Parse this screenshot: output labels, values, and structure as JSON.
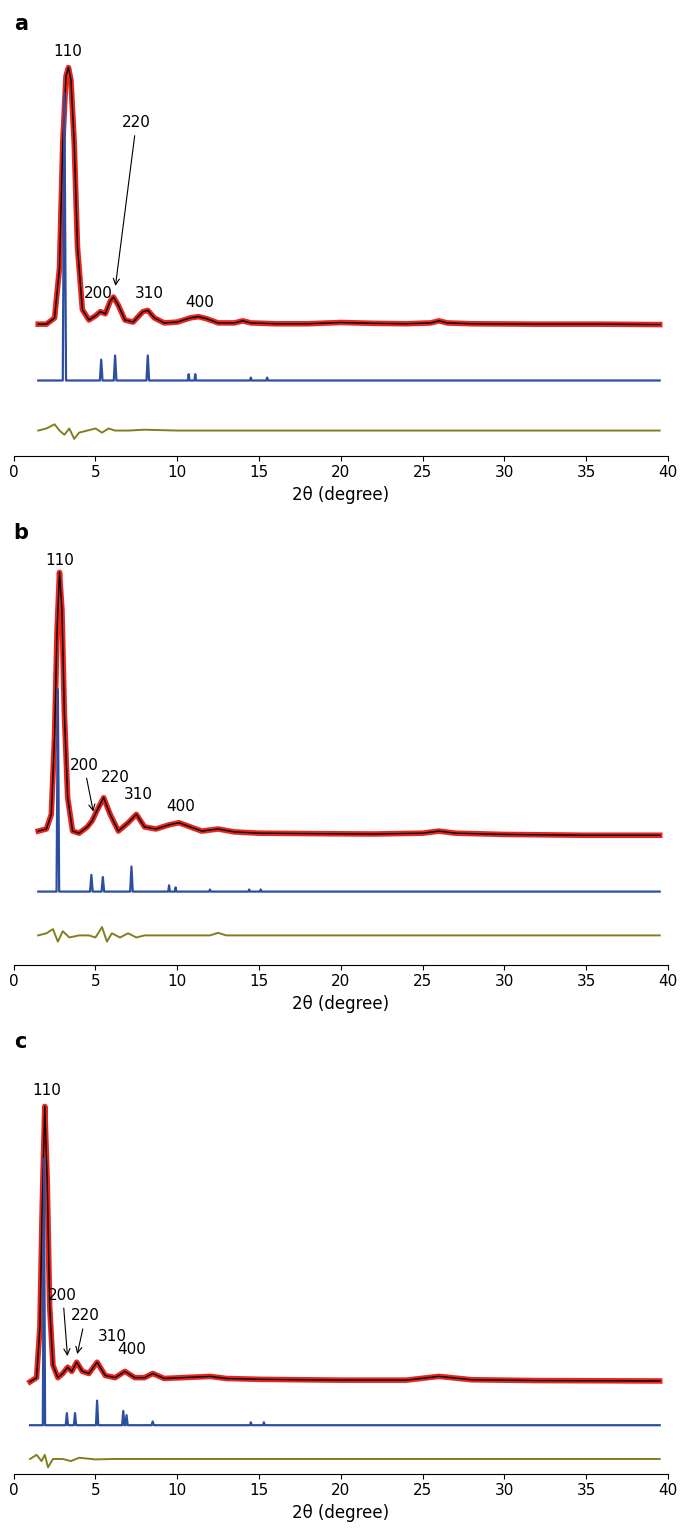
{
  "chart_data": [
    {
      "type": "line",
      "title": "a",
      "x_label": "2θ (degree)",
      "xlim": [
        0,
        40
      ],
      "xticks": [
        0,
        5,
        10,
        15,
        20,
        25,
        30,
        35,
        40
      ],
      "ylim": [
        0,
        100
      ],
      "tick_labels": "x",
      "series": [
        {
          "color": "#e8251f",
          "x": [
            1.5,
            2.0,
            2.5,
            2.8,
            3.0,
            3.2,
            3.35,
            3.5,
            3.7,
            3.9,
            4.2,
            4.6,
            5.0,
            5.3,
            5.6,
            5.9,
            6.1,
            6.4,
            6.8,
            7.3,
            7.9,
            8.2,
            8.6,
            9.2,
            10.0,
            10.8,
            11.3,
            11.8,
            12.5,
            13.5,
            14.0,
            14.5,
            16.0,
            18.0,
            20.0,
            22.0,
            24.0,
            25.5,
            26.0,
            26.5,
            28.0,
            32.0,
            36.0,
            39.5
          ],
          "values": [
            31.5,
            31.5,
            33,
            45,
            75,
            91,
            93,
            90,
            75,
            50,
            35,
            32.5,
            33.5,
            34.5,
            34,
            37,
            38,
            36,
            32.5,
            32,
            34.5,
            34.8,
            33,
            31.8,
            32,
            33,
            33.3,
            32.8,
            31.8,
            31.8,
            32.3,
            31.8,
            31.6,
            31.6,
            31.9,
            31.7,
            31.6,
            31.8,
            32.3,
            31.8,
            31.6,
            31.5,
            31.5,
            31.4
          ]
        },
        {
          "color": "#000000",
          "x": [
            1.5,
            2.0,
            2.5,
            2.8,
            3.0,
            3.2,
            3.35,
            3.5,
            3.7,
            3.9,
            4.2,
            4.6,
            5.0,
            5.3,
            5.6,
            5.9,
            6.1,
            6.4,
            6.8,
            7.3,
            7.9,
            8.2,
            8.6,
            9.2,
            10.0,
            10.8,
            11.3,
            11.8,
            12.5,
            13.5,
            14.0,
            14.5,
            16.0,
            18.0,
            20.0,
            22.0,
            24.0,
            25.5,
            26.0,
            26.5,
            28.0,
            32.0,
            36.0,
            39.5
          ],
          "values": [
            31.5,
            31.5,
            33,
            45,
            75,
            91,
            93,
            90,
            75,
            50,
            35,
            32.5,
            33.5,
            34.5,
            34,
            37,
            38,
            36,
            32.5,
            32,
            34.5,
            34.8,
            33,
            31.8,
            32,
            33,
            33.3,
            32.8,
            31.8,
            31.8,
            32.3,
            31.8,
            31.6,
            31.6,
            31.9,
            31.7,
            31.6,
            31.8,
            32.3,
            31.8,
            31.6,
            31.5,
            31.5,
            31.4
          ]
        },
        {
          "color": "#2c4ea0",
          "x": [
            1.5,
            3.0,
            3.1,
            3.2,
            5.27,
            5.35,
            5.43,
            6.12,
            6.2,
            6.28,
            8.12,
            8.2,
            8.28,
            10.65,
            10.7,
            10.75,
            11.05,
            11.1,
            11.15,
            14.45,
            14.5,
            14.55,
            15.45,
            15.5,
            15.55,
            39.5
          ],
          "values": [
            18,
            18,
            87,
            18,
            18,
            23,
            18,
            18,
            24,
            18,
            18,
            24,
            18,
            18,
            19.5,
            18,
            18,
            19.5,
            18,
            18,
            18.7,
            18,
            18,
            18.7,
            18,
            18
          ]
        },
        {
          "color": "#808020",
          "x": [
            1.5,
            2.0,
            2.5,
            2.8,
            3.1,
            3.4,
            3.7,
            4.0,
            4.5,
            5.0,
            5.4,
            5.8,
            6.2,
            7.0,
            8.0,
            10.0,
            15.0,
            39.5
          ],
          "values": [
            6,
            6.5,
            7.5,
            6,
            5,
            6.5,
            4,
            5.5,
            6,
            6.5,
            5.5,
            6.5,
            6,
            6,
            6.2,
            6,
            6,
            6
          ]
        }
      ],
      "annotations": [
        {
          "text": "110",
          "x": 3.3,
          "y": 95
        },
        {
          "text": "200",
          "x": 5.2,
          "y": 37
        },
        {
          "text": "220",
          "x": 7.5,
          "y": 78,
          "xy": [
            6.2,
            40
          ]
        },
        {
          "text": "310",
          "x": 8.3,
          "y": 37
        },
        {
          "text": "400",
          "x": 11.4,
          "y": 35
        }
      ]
    },
    {
      "type": "line",
      "title": "b",
      "x_label": "2θ (degree)",
      "xlim": [
        0,
        40
      ],
      "xticks": [
        0,
        5,
        10,
        15,
        20,
        25,
        30,
        35,
        40
      ],
      "ylim": [
        0,
        100
      ],
      "tick_labels": "x",
      "series": [
        {
          "color": "#e8251f",
          "x": [
            1.5,
            2.0,
            2.3,
            2.5,
            2.65,
            2.8,
            2.95,
            3.1,
            3.3,
            3.6,
            4.0,
            4.5,
            4.8,
            5.1,
            5.5,
            5.9,
            6.4,
            7.0,
            7.5,
            8.0,
            8.7,
            9.5,
            10.1,
            10.8,
            11.5,
            12.5,
            13.5,
            15.0,
            18.0,
            22.0,
            25.0,
            26.0,
            27.0,
            30.0,
            35.0,
            39.5
          ],
          "values": [
            32,
            32.5,
            36,
            55,
            80,
            94,
            85,
            60,
            40,
            32,
            31.5,
            33,
            34.5,
            37,
            40,
            36,
            32,
            34,
            36,
            33,
            32.5,
            33.5,
            34,
            33,
            32,
            32.5,
            31.8,
            31.5,
            31.4,
            31.3,
            31.5,
            32,
            31.5,
            31.2,
            31,
            31
          ]
        },
        {
          "color": "#000000",
          "x": [
            1.5,
            2.0,
            2.3,
            2.5,
            2.65,
            2.8,
            2.95,
            3.1,
            3.3,
            3.6,
            4.0,
            4.5,
            4.8,
            5.1,
            5.5,
            5.9,
            6.4,
            7.0,
            7.5,
            8.0,
            8.7,
            9.5,
            10.1,
            10.8,
            11.5,
            12.5,
            13.5,
            15.0,
            18.0,
            22.0,
            25.0,
            26.0,
            27.0,
            30.0,
            35.0,
            39.5
          ],
          "values": [
            32,
            32.5,
            36,
            55,
            80,
            94,
            85,
            60,
            40,
            32,
            31.5,
            33,
            34.5,
            37,
            40,
            36,
            32,
            34,
            36,
            33,
            32.5,
            33.5,
            34,
            33,
            32,
            32.5,
            31.8,
            31.5,
            31.4,
            31.3,
            31.5,
            32,
            31.5,
            31.2,
            31,
            31
          ]
        },
        {
          "color": "#2c4ea0",
          "x": [
            1.5,
            2.62,
            2.7,
            2.78,
            4.67,
            4.75,
            4.83,
            5.37,
            5.45,
            5.53,
            7.12,
            7.2,
            7.28,
            9.45,
            9.5,
            9.55,
            9.85,
            9.9,
            9.95,
            11.95,
            12.0,
            12.05,
            14.35,
            14.4,
            14.45,
            15.05,
            15.1,
            15.15,
            39.5
          ],
          "values": [
            17.5,
            17.5,
            66,
            17.5,
            17.5,
            21.5,
            17.5,
            17.5,
            21,
            17.5,
            17.5,
            23.5,
            17.5,
            17.5,
            19,
            17.5,
            17.5,
            18.5,
            17.5,
            17.5,
            18,
            17.5,
            17.5,
            18,
            17.5,
            17.5,
            18,
            17.5,
            17.5
          ]
        },
        {
          "color": "#808020",
          "x": [
            1.5,
            2.0,
            2.4,
            2.7,
            3.0,
            3.4,
            4.0,
            4.6,
            5.0,
            5.4,
            5.7,
            6.0,
            6.5,
            7.0,
            7.5,
            8.0,
            9.0,
            12.0,
            12.5,
            13.0,
            20.0,
            39.5
          ],
          "values": [
            7,
            7.5,
            8.5,
            5.5,
            8,
            6.5,
            7,
            7,
            6.5,
            9,
            5.5,
            7.5,
            6.5,
            7.5,
            6.5,
            7,
            7,
            7,
            7.6,
            7,
            7,
            7
          ]
        }
      ],
      "annotations": [
        {
          "text": "110",
          "x": 2.8,
          "y": 95
        },
        {
          "text": "200",
          "x": 4.3,
          "y": 46,
          "xy": [
            4.9,
            36
          ]
        },
        {
          "text": "220",
          "x": 6.2,
          "y": 43
        },
        {
          "text": "310",
          "x": 7.6,
          "y": 39
        },
        {
          "text": "400",
          "x": 10.2,
          "y": 36
        }
      ]
    },
    {
      "type": "line",
      "title": "c",
      "x_label": "2θ (degree)",
      "xlim": [
        0,
        40
      ],
      "xticks": [
        0,
        5,
        10,
        15,
        20,
        25,
        30,
        35,
        40
      ],
      "ylim": [
        0,
        100
      ],
      "tick_labels": "x",
      "series": [
        {
          "color": "#e8251f",
          "x": [
            1.0,
            1.4,
            1.6,
            1.75,
            1.9,
            2.05,
            2.2,
            2.4,
            2.7,
            3.0,
            3.3,
            3.55,
            3.85,
            4.2,
            4.6,
            5.1,
            5.6,
            6.2,
            6.8,
            7.4,
            8.0,
            8.5,
            9.2,
            10.3,
            11.5,
            12.0,
            13.0,
            15.0,
            20.0,
            24.0,
            26.0,
            28.0,
            32.0,
            39.5
          ],
          "values": [
            22,
            23,
            35,
            65,
            88,
            70,
            40,
            26,
            23,
            24,
            25.5,
            24.5,
            26.7,
            24.5,
            24,
            26.7,
            23.5,
            23,
            24.5,
            23,
            23,
            24,
            22.8,
            23,
            23.2,
            23.3,
            22.8,
            22.6,
            22.4,
            22.4,
            23.3,
            22.5,
            22.3,
            22.2
          ]
        },
        {
          "color": "#000000",
          "x": [
            1.0,
            1.4,
            1.6,
            1.75,
            1.9,
            2.05,
            2.2,
            2.4,
            2.7,
            3.0,
            3.3,
            3.55,
            3.85,
            4.2,
            4.6,
            5.1,
            5.6,
            6.2,
            6.8,
            7.4,
            8.0,
            8.5,
            9.2,
            10.3,
            11.5,
            12.0,
            13.0,
            15.0,
            20.0,
            24.0,
            26.0,
            28.0,
            32.0,
            39.5
          ],
          "values": [
            22,
            23,
            35,
            65,
            88,
            70,
            40,
            26,
            23,
            24,
            25.5,
            24.5,
            26.7,
            24.5,
            24,
            26.7,
            23.5,
            23,
            24.5,
            23,
            23,
            24,
            22.8,
            23,
            23.2,
            23.3,
            22.8,
            22.6,
            22.4,
            22.4,
            23.3,
            22.5,
            22.3,
            22.2
          ]
        },
        {
          "color": "#2c4ea0",
          "x": [
            1.0,
            1.78,
            1.85,
            1.92,
            3.18,
            3.25,
            3.32,
            3.68,
            3.75,
            3.82,
            5.03,
            5.1,
            5.17,
            6.63,
            6.7,
            6.77,
            6.83,
            6.9,
            6.97,
            8.43,
            8.5,
            8.57,
            14.45,
            14.5,
            14.55,
            15.25,
            15.3,
            15.35,
            39.5
          ],
          "values": [
            11.6,
            11.6,
            75.6,
            11.6,
            11.6,
            14.5,
            11.6,
            11.6,
            14.5,
            11.6,
            11.6,
            17.5,
            11.6,
            11.6,
            15,
            11.6,
            11.6,
            14,
            11.6,
            11.6,
            12.5,
            11.6,
            11.6,
            12.3,
            11.6,
            11.6,
            12.3,
            11.6,
            11.6
          ]
        },
        {
          "color": "#808020",
          "x": [
            1.0,
            1.4,
            1.7,
            1.9,
            2.1,
            2.4,
            3.0,
            3.5,
            4.0,
            5.0,
            6.0,
            39.5
          ],
          "values": [
            3.5,
            4.5,
            3,
            4.5,
            1.5,
            3.5,
            3.5,
            3,
            3.8,
            3.4,
            3.5,
            3.5
          ]
        }
      ],
      "annotations": [
        {
          "text": "110",
          "x": 2.0,
          "y": 90
        },
        {
          "text": "200",
          "x": 3.0,
          "y": 41,
          "xy": [
            3.3,
            27.5
          ]
        },
        {
          "text": "220",
          "x": 4.4,
          "y": 36,
          "xy": [
            3.85,
            28
          ]
        },
        {
          "text": "310",
          "x": 6.0,
          "y": 31
        },
        {
          "text": "400",
          "x": 7.2,
          "y": 28
        }
      ]
    }
  ]
}
